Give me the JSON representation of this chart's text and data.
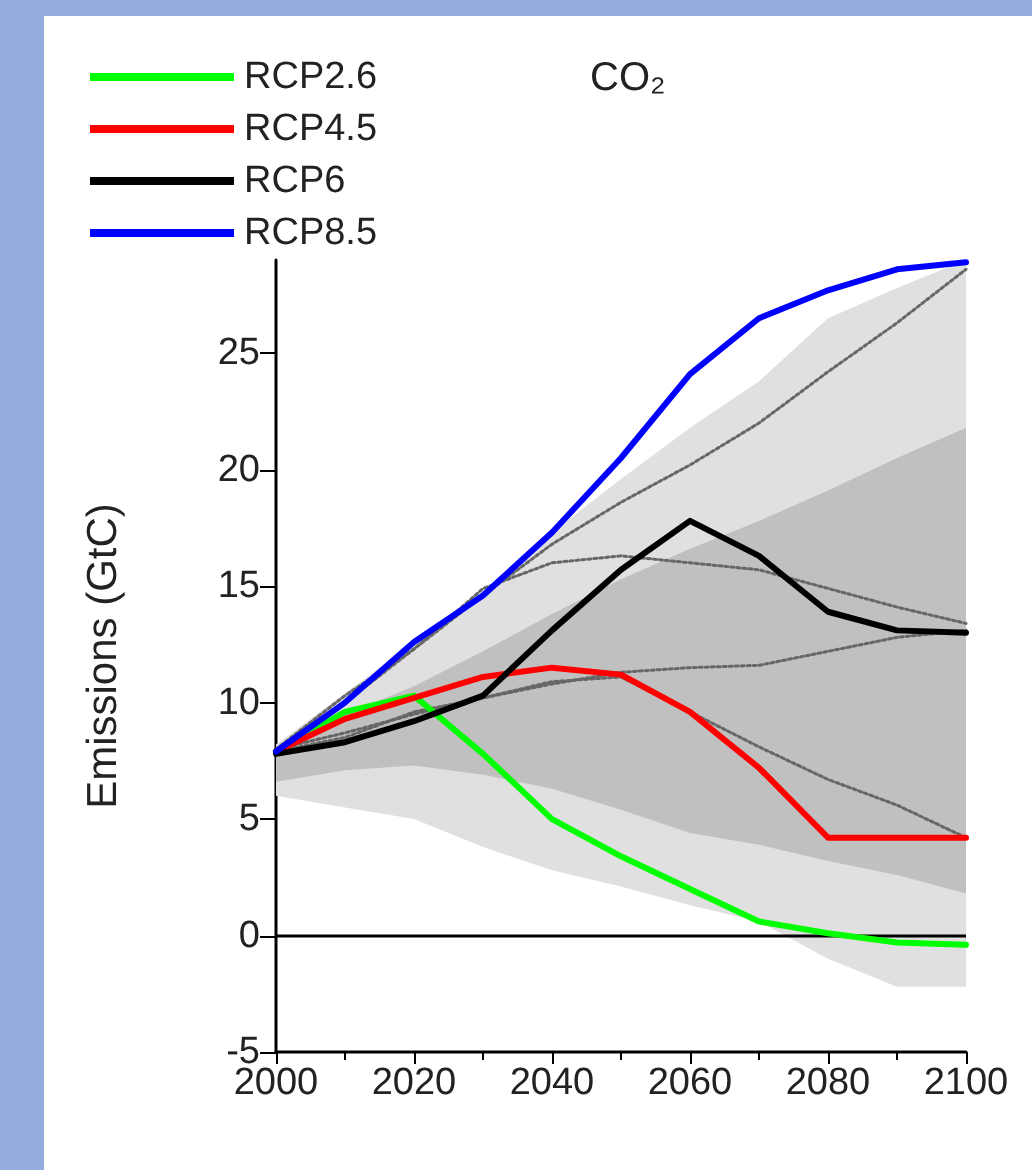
{
  "chart_data": {
    "type": "line",
    "title": "CO₂",
    "ylabel": "Emissions (GtC)",
    "x": [
      2000,
      2010,
      2020,
      2030,
      2040,
      2050,
      2060,
      2070,
      2080,
      2090,
      2100
    ],
    "xlim": [
      2000,
      2100
    ],
    "xticks": [
      2000,
      2020,
      2040,
      2060,
      2080,
      2100
    ],
    "ylim": [
      -5,
      29
    ],
    "yticks": [
      -5,
      0,
      5,
      10,
      15,
      20,
      25
    ],
    "grid": false,
    "legend": "top left",
    "marker": "none",
    "line_style": "solid",
    "ref_lines": [
      {
        "axis": "y",
        "value": 0,
        "color": "#000000"
      }
    ],
    "series": [
      {
        "color": "#e0e0e0",
        "values": [
          null,
          null,
          null,
          null,
          null,
          null,
          null,
          null,
          null,
          null,
          null
        ],
        "lower": [
          6.0,
          5.5,
          5.0,
          3.8,
          2.8,
          2.1,
          1.3,
          0.6,
          -1.0,
          -2.2,
          -2.2
        ],
        "upper": [
          8.2,
          10.4,
          12.6,
          14.6,
          17.3,
          19.6,
          21.8,
          23.8,
          26.5,
          27.8,
          29.0
        ]
      },
      {
        "color": "#c0c0c0",
        "values": [
          null,
          null,
          null,
          null,
          null,
          null,
          null,
          null,
          null,
          null,
          null
        ],
        "lower": [
          6.6,
          7.1,
          7.3,
          6.9,
          6.3,
          5.4,
          4.4,
          3.9,
          3.2,
          2.6,
          1.8
        ],
        "upper": [
          8.1,
          9.5,
          10.7,
          12.2,
          13.8,
          15.3,
          16.6,
          17.8,
          19.1,
          20.5,
          21.8
        ]
      },
      {
        "color": "#666666",
        "line_style": "dotted",
        "values": [
          8.0,
          10.3,
          12.3,
          14.6,
          16.8,
          18.6,
          20.2,
          22.0,
          24.2,
          26.3,
          28.6
        ]
      },
      {
        "color": "#666666",
        "line_style": "dotted",
        "values": [
          8.0,
          10.0,
          12.3,
          14.9,
          16.0,
          16.3,
          16.0,
          15.7,
          14.9,
          14.1,
          13.4
        ]
      },
      {
        "color": "#666666",
        "line_style": "dotted",
        "values": [
          8.0,
          8.7,
          9.5,
          10.2,
          10.8,
          11.3,
          11.5,
          11.6,
          12.2,
          12.8,
          13.1
        ]
      },
      {
        "color": "#666666",
        "line_style": "dotted",
        "values": [
          7.9,
          8.5,
          9.6,
          10.2,
          10.9,
          11.1,
          9.6,
          8.1,
          6.7,
          5.6,
          4.2
        ]
      },
      {
        "name": "RCP2.6",
        "color": "#00ff00",
        "values": [
          7.9,
          9.6,
          10.3,
          7.8,
          5.0,
          3.4,
          2.0,
          0.6,
          0.1,
          -0.3,
          -0.4
        ]
      },
      {
        "name": "RCP4.5",
        "color": "#ff0000",
        "values": [
          7.9,
          9.3,
          10.2,
          11.1,
          11.5,
          11.2,
          9.6,
          7.2,
          4.2,
          4.2,
          4.2
        ]
      },
      {
        "name": "RCP6",
        "color": "#000000",
        "values": [
          7.8,
          8.3,
          9.2,
          10.3,
          13.1,
          15.7,
          17.8,
          16.3,
          13.9,
          13.1,
          13.0
        ]
      },
      {
        "name": "RCP8.5",
        "color": "#0000ff",
        "values": [
          7.9,
          10.0,
          12.6,
          14.6,
          17.3,
          20.5,
          24.1,
          26.5,
          27.7,
          28.6,
          28.9
        ]
      }
    ]
  }
}
